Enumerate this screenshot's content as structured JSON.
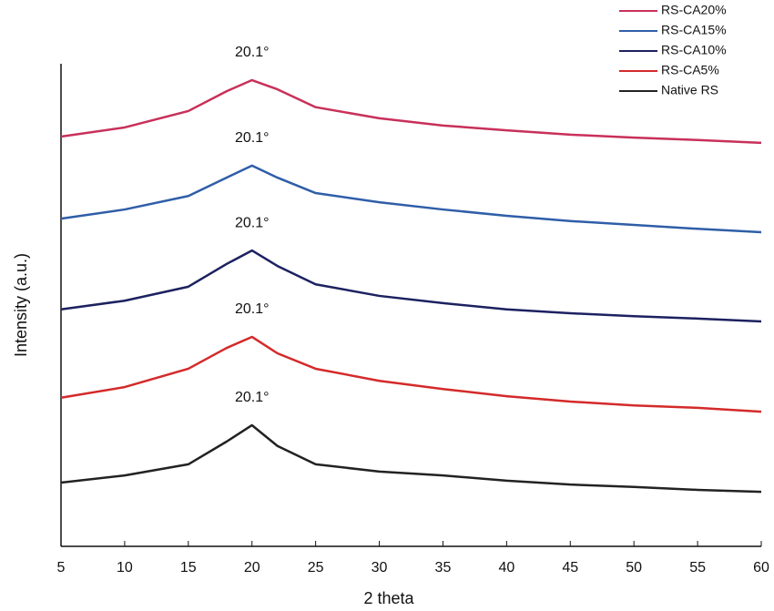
{
  "chart_data": {
    "type": "line",
    "x_label": "2 theta",
    "y_label": "Intensity (a.u.)",
    "x": [
      5,
      10,
      15,
      18,
      20,
      22,
      25,
      30,
      35,
      40,
      45,
      50,
      55,
      60
    ],
    "series": [
      {
        "name": "RS-CA20%",
        "color": "#c8305a",
        "values": [
          84.9,
          86.8,
          90.2,
          94.3,
          96.6,
          94.7,
          91.0,
          88.7,
          87.2,
          86.2,
          85.3,
          84.7,
          84.2,
          83.6
        ]
      },
      {
        "name": "RS-CA15%",
        "color": "#2f5ea8",
        "values": [
          67.9,
          69.8,
          72.6,
          76.4,
          78.9,
          76.4,
          73.2,
          71.3,
          69.8,
          68.5,
          67.4,
          66.6,
          65.8,
          65.1
        ]
      },
      {
        "name": "RS-CA10%",
        "color": "#1c2160",
        "values": [
          49.1,
          50.9,
          53.8,
          58.5,
          61.3,
          58.1,
          54.3,
          51.9,
          50.4,
          49.1,
          48.3,
          47.7,
          47.2,
          46.6
        ]
      },
      {
        "name": "RS-CA5%",
        "color": "#d42a2a",
        "values": [
          30.8,
          33.0,
          36.8,
          41.1,
          43.4,
          40.0,
          36.8,
          34.3,
          32.6,
          31.1,
          30.0,
          29.2,
          28.7,
          27.9
        ]
      },
      {
        "name": "Native RS",
        "color": "#222222",
        "values": [
          13.2,
          14.7,
          17.0,
          21.7,
          25.1,
          20.8,
          17.0,
          15.5,
          14.7,
          13.6,
          12.8,
          12.3,
          11.7,
          11.3
        ]
      }
    ],
    "annotations": [
      "20.1°",
      "20.1°",
      "20.1°",
      "20.1°",
      "20.1°"
    ],
    "xlim": [
      5,
      60
    ],
    "xticks": [
      5,
      10,
      15,
      20,
      25,
      30,
      35,
      40,
      45,
      50,
      55,
      60
    ],
    "ylim": [
      0,
      100
    ],
    "legend": "top-right"
  }
}
